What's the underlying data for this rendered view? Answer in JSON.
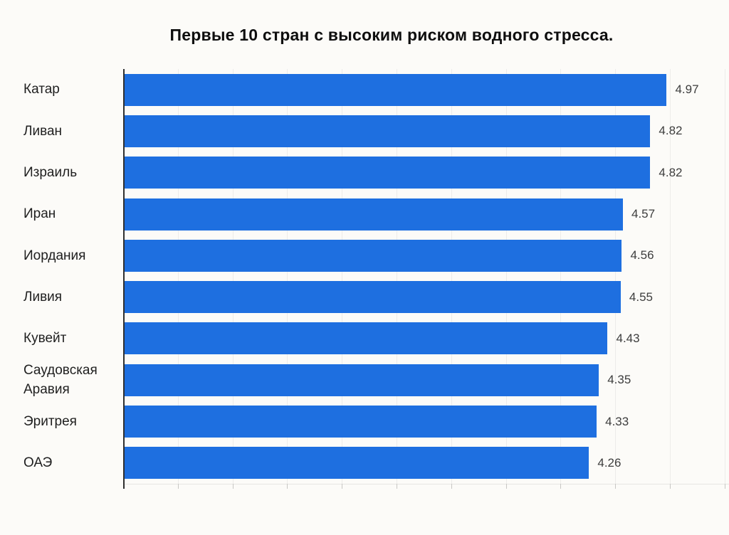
{
  "page": {
    "background_color": "#fcfbf8"
  },
  "chart_data": {
    "type": "bar",
    "orientation": "horizontal",
    "title": "Первые 10 стран с высоким риском водного стресса.",
    "categories": [
      "Катар",
      "Ливан",
      "Израиль",
      "Иран",
      "Иордания",
      "Ливия",
      "Кувейт",
      "Саудовская Аравия",
      "Эритрея",
      "ОАЭ"
    ],
    "values": [
      4.97,
      4.82,
      4.82,
      4.57,
      4.56,
      4.55,
      4.43,
      4.35,
      4.33,
      4.26
    ],
    "value_labels": [
      "4.97",
      "4.82",
      "4.82",
      "4.57",
      "4.56",
      "4.55",
      "4.43",
      "4.35",
      "4.33",
      "4.26"
    ],
    "xlabel": "",
    "ylabel": "",
    "xlim": [
      0,
      5.54
    ],
    "grid_step": 0.5,
    "grid": "vertical-faint",
    "legend": "none",
    "x_tick_labels_visible": false,
    "bar_color": "#1e6fe0",
    "axis_color": "#2f2f2f",
    "title_color": "#0e0e0e",
    "category_label_color": "#1f1f1f",
    "value_label_color": "#3d3d3d",
    "gridline_color": "#edecea"
  }
}
